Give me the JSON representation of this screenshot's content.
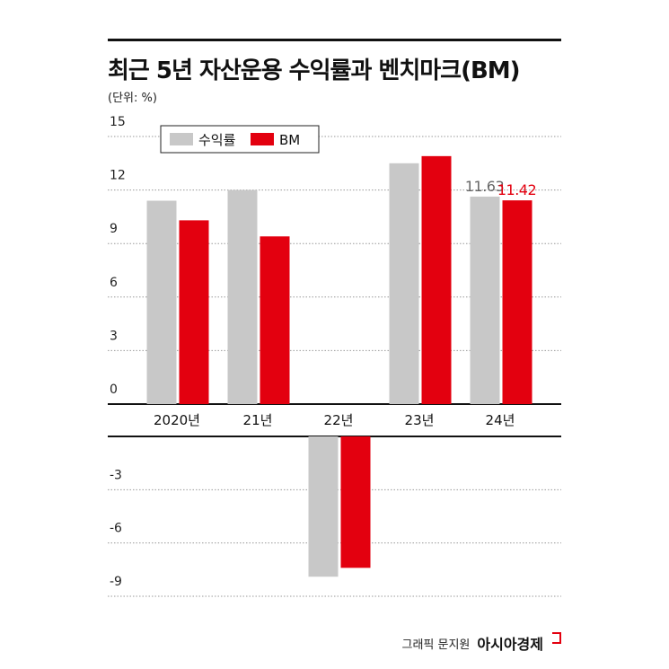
{
  "header": {
    "title": "최근 5년 자산운용 수익률과 벤치마크(BM)",
    "unit": "(단위: %)"
  },
  "footer": {
    "credit": "그래픽 문지원",
    "brand": "아시아경제"
  },
  "colors": {
    "return": "#c8c8c8",
    "benchmark": "#e3000f",
    "grid": "#999999",
    "axis": "#111111"
  },
  "chart_data": {
    "type": "bar",
    "categories": [
      "2020년",
      "21년",
      "22년",
      "23년",
      "24년"
    ],
    "series": [
      {
        "name": "수익률",
        "values": [
          11.4,
          12.0,
          -7.9,
          13.5,
          11.63
        ]
      },
      {
        "name": "BM",
        "values": [
          10.3,
          9.4,
          -7.4,
          13.9,
          11.42
        ]
      }
    ],
    "data_labels": [
      {
        "series": 0,
        "index": 4,
        "text": "11.63"
      },
      {
        "series": 1,
        "index": 4,
        "text": "11.42"
      }
    ],
    "yticks": [
      "15",
      "12",
      "9",
      "6",
      "3",
      "0",
      "-3",
      "-6",
      "-9"
    ],
    "ylim": [
      -9,
      15
    ],
    "grid": true,
    "legend": "top-left"
  }
}
